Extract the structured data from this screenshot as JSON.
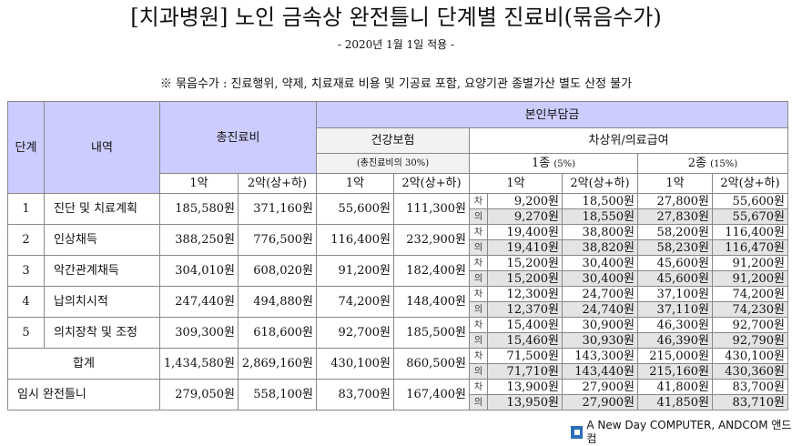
{
  "title": "[치과병원] 노인 금속상 완전틀니 단계별 진료비(묶음수가)",
  "subtitle": "- 2020년 1월 1일 적용 -",
  "note": "※ 묶음수가 : 진료행위, 약제, 치료재료 비용 및 기공료 포함, 요양기관 종별가산 별도 산정 불가",
  "header": {
    "stage": "단계",
    "item": "내역",
    "total": "총진료비",
    "copay": "본인부담금",
    "insurance": "건강보험",
    "insurance_note": "(총진료비의 30%)",
    "aid": "차상위/의료급여",
    "type1": "1종",
    "type1_rate": "(5%)",
    "type2": "2종",
    "type2_rate": "(15%)",
    "one_jaw": "1악",
    "two_jaw": "2악(상+하)"
  },
  "sub_labels": {
    "cha": "차",
    "ui": "의"
  },
  "rows": [
    {
      "stage": "1",
      "name": "진단 및 치료계획",
      "total": [
        "185,580원",
        "371,160원"
      ],
      "ins": [
        "55,600원",
        "111,300원"
      ],
      "cha": [
        "9,200원",
        "18,500원",
        "27,800원",
        "55,600원"
      ],
      "ui": [
        "9,270원",
        "18,550원",
        "27,830원",
        "55,670원"
      ]
    },
    {
      "stage": "2",
      "name": "인상채득",
      "total": [
        "388,250원",
        "776,500원"
      ],
      "ins": [
        "116,400원",
        "232,900원"
      ],
      "cha": [
        "19,400원",
        "38,800원",
        "58,200원",
        "116,400원"
      ],
      "ui": [
        "19,410원",
        "38,820원",
        "58,230원",
        "116,470원"
      ]
    },
    {
      "stage": "3",
      "name": "악간관계채득",
      "total": [
        "304,010원",
        "608,020원"
      ],
      "ins": [
        "91,200원",
        "182,400원"
      ],
      "cha": [
        "15,200원",
        "30,400원",
        "45,600원",
        "91,200원"
      ],
      "ui": [
        "15,200원",
        "30,400원",
        "45,600원",
        "91,200원"
      ]
    },
    {
      "stage": "4",
      "name": "납의치시적",
      "total": [
        "247,440원",
        "494,880원"
      ],
      "ins": [
        "74,200원",
        "148,400원"
      ],
      "cha": [
        "12,300원",
        "24,700원",
        "37,100원",
        "74,200원"
      ],
      "ui": [
        "12,370원",
        "24,740원",
        "37,110원",
        "74,230원"
      ]
    },
    {
      "stage": "5",
      "name": "의치장착 및 조정",
      "total": [
        "309,300원",
        "618,600원"
      ],
      "ins": [
        "92,700원",
        "185,500원"
      ],
      "cha": [
        "15,400원",
        "30,900원",
        "46,300원",
        "92,700원"
      ],
      "ui": [
        "15,460원",
        "30,930원",
        "46,390원",
        "92,790원"
      ]
    },
    {
      "stage": "",
      "name": "합계",
      "total": [
        "1,434,580원",
        "2,869,160원"
      ],
      "ins": [
        "430,100원",
        "860,500원"
      ],
      "cha": [
        "71,500원",
        "143,300원",
        "215,000원",
        "430,100원"
      ],
      "ui": [
        "71,710원",
        "143,440원",
        "215,160원",
        "430,360원"
      ]
    },
    {
      "stage": "",
      "name": "임시 완전틀니",
      "total": [
        "279,050원",
        "558,100원"
      ],
      "ins": [
        "83,700원",
        "167,400원"
      ],
      "cha": [
        "13,900원",
        "27,900원",
        "41,800원",
        "83,700원"
      ],
      "ui": [
        "13,950원",
        "27,900원",
        "41,850원",
        "83,710원"
      ]
    }
  ],
  "footer_logo": "A New Day COMPUTER, ANDCOM 앤드컴",
  "colors": {
    "header_purple": "#ccccff",
    "header_gray": "#f2f2f2",
    "ui_row": "#e4e4e4",
    "logo": "#2a6fb8"
  }
}
